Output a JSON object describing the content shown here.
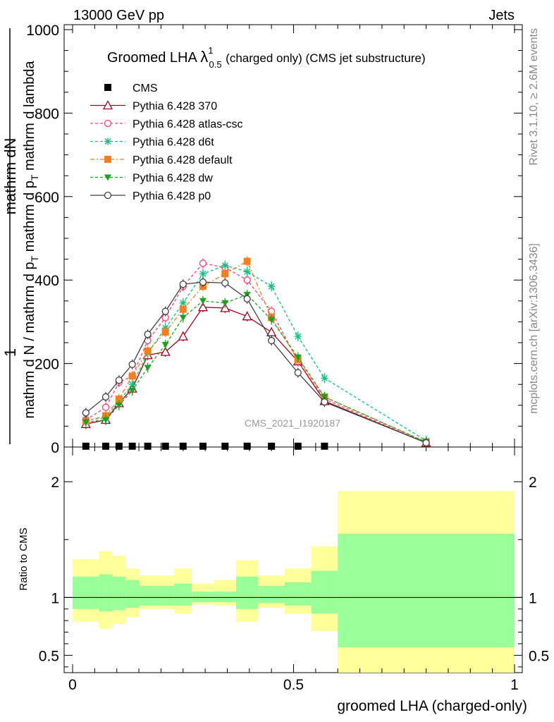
{
  "header": {
    "left": "13000 GeV pp",
    "right": "Jets"
  },
  "side_labels": {
    "rivet": "Rivet 3.1.10, ≥ 2.6M events",
    "mcplots": "mcplots.cern.ch [arXiv:1306.3436]"
  },
  "watermark": "CMS_2021_I1920187",
  "chart_data": [
    {
      "type": "line",
      "title_main": "Groomed LHA",
      "title_symbol": "λ",
      "title_sup": "1",
      "title_sub": "0.5",
      "title_rest": "(charged only) (CMS jet substructure)",
      "ylabel_num": "mathrm dN",
      "ylabel_num_frac_num": "1",
      "ylabel_den": "mathrm d N / mathrm d p",
      "ylabel_den_sub": "T",
      "ylabel_den_rest": "mathrm d p",
      "ylabel_den_rest_sub": "T",
      "ylabel_den_tail": "mathrm d lambda",
      "xlim": [
        0,
        1
      ],
      "ylim": [
        0,
        1000
      ],
      "y_ticks": [
        0,
        200,
        400,
        600,
        800,
        1000
      ],
      "x_ticks": [
        0,
        0.5,
        1
      ],
      "legend_position": "top-left",
      "cms": {
        "name": "CMS",
        "color": "#000000",
        "x": [
          0.03,
          0.075,
          0.105,
          0.135,
          0.17,
          0.21,
          0.25,
          0.295,
          0.345,
          0.395,
          0.45,
          0.51,
          0.57
        ],
        "y": [
          2,
          2,
          2,
          2,
          2,
          2,
          2,
          2,
          2,
          2,
          2,
          2,
          2
        ]
      },
      "series": [
        {
          "name": "Pythia 6.428 370",
          "color": "#a00020",
          "dash": "",
          "marker": "triangle-open",
          "x": [
            0.03,
            0.075,
            0.105,
            0.135,
            0.17,
            0.21,
            0.25,
            0.295,
            0.345,
            0.395,
            0.45,
            0.51,
            0.57,
            0.8
          ],
          "y": [
            55,
            65,
            105,
            140,
            220,
            228,
            265,
            335,
            333,
            313,
            275,
            205,
            110,
            10
          ]
        },
        {
          "name": "Pythia 6.428 atlas-csc",
          "color": "#ff4070",
          "dash": "4,3",
          "marker": "circle-open",
          "x": [
            0.03,
            0.075,
            0.105,
            0.135,
            0.17,
            0.21,
            0.25,
            0.295,
            0.345,
            0.395,
            0.45,
            0.51,
            0.57,
            0.8
          ],
          "y": [
            65,
            95,
            155,
            170,
            255,
            310,
            385,
            440,
            430,
            400,
            325,
            205,
            115,
            10
          ]
        },
        {
          "name": "Pythia 6.428 d6t",
          "color": "#10c080",
          "dash": "4,3",
          "marker": "star",
          "x": [
            0.03,
            0.075,
            0.105,
            0.135,
            0.17,
            0.21,
            0.25,
            0.295,
            0.345,
            0.395,
            0.45,
            0.51,
            0.57,
            0.8
          ],
          "y": [
            65,
            70,
            110,
            150,
            225,
            285,
            345,
            415,
            435,
            420,
            385,
            265,
            165,
            15
          ]
        },
        {
          "name": "Pythia 6.428 default",
          "color": "#f08020",
          "dash": "6,3,2,3",
          "marker": "square",
          "x": [
            0.03,
            0.075,
            0.105,
            0.135,
            0.17,
            0.21,
            0.25,
            0.295,
            0.345,
            0.395,
            0.45,
            0.51,
            0.57,
            0.8
          ],
          "y": [
            62,
            75,
            115,
            170,
            230,
            275,
            330,
            385,
            415,
            445,
            310,
            210,
            120,
            12
          ]
        },
        {
          "name": "Pythia 6.428 dw",
          "color": "#20a020",
          "dash": "4,3",
          "marker": "triangle-down",
          "x": [
            0.03,
            0.075,
            0.105,
            0.135,
            0.17,
            0.21,
            0.25,
            0.295,
            0.345,
            0.395,
            0.45,
            0.51,
            0.57,
            0.8
          ],
          "y": [
            60,
            65,
            100,
            135,
            190,
            245,
            310,
            350,
            345,
            365,
            305,
            215,
            120,
            12
          ]
        },
        {
          "name": "Pythia 6.428 p0",
          "color": "#404040",
          "dash": "",
          "marker": "circle-open",
          "x": [
            0.03,
            0.075,
            0.105,
            0.135,
            0.17,
            0.21,
            0.25,
            0.295,
            0.345,
            0.395,
            0.45,
            0.51,
            0.57,
            0.8
          ],
          "y": [
            82,
            120,
            160,
            198,
            270,
            325,
            390,
            395,
            393,
            355,
            255,
            178,
            108,
            10
          ]
        }
      ]
    },
    {
      "type": "area",
      "ylabel": "Ratio to CMS",
      "xlabel": "groomed LHA (charged-only)",
      "xlim": [
        0,
        1
      ],
      "ylim": [
        0.35,
        2.3
      ],
      "y_ticks": [
        0.5,
        1,
        2
      ],
      "x_ticks": [
        0,
        0.5,
        1
      ],
      "x_tick_labels": [
        "0",
        "0.5",
        "1"
      ],
      "band_colors": {
        "stat": "#99ff99",
        "total": "#ffff99",
        "ref_line": "#000000"
      },
      "bins": [
        {
          "x0": 0.0,
          "x1": 0.06,
          "inner_lo": 0.9,
          "inner_hi": 1.18,
          "outer_lo": 0.79,
          "outer_hi": 1.33
        },
        {
          "x0": 0.06,
          "x1": 0.09,
          "inner_lo": 0.88,
          "inner_hi": 1.2,
          "outer_lo": 0.73,
          "outer_hi": 1.4
        },
        {
          "x0": 0.09,
          "x1": 0.12,
          "inner_lo": 0.89,
          "inner_hi": 1.18,
          "outer_lo": 0.77,
          "outer_hi": 1.36
        },
        {
          "x0": 0.12,
          "x1": 0.15,
          "inner_lo": 0.91,
          "inner_hi": 1.15,
          "outer_lo": 0.83,
          "outer_hi": 1.25
        },
        {
          "x0": 0.15,
          "x1": 0.19,
          "inner_lo": 0.93,
          "inner_hi": 1.1,
          "outer_lo": 0.9,
          "outer_hi": 1.19
        },
        {
          "x0": 0.19,
          "x1": 0.23,
          "inner_lo": 0.93,
          "inner_hi": 1.1,
          "outer_lo": 0.9,
          "outer_hi": 1.19
        },
        {
          "x0": 0.23,
          "x1": 0.27,
          "inner_lo": 0.93,
          "inner_hi": 1.12,
          "outer_lo": 0.86,
          "outer_hi": 1.25
        },
        {
          "x0": 0.27,
          "x1": 0.32,
          "inner_lo": 0.96,
          "inner_hi": 1.05,
          "outer_lo": 0.94,
          "outer_hi": 1.12
        },
        {
          "x0": 0.32,
          "x1": 0.37,
          "inner_lo": 0.96,
          "inner_hi": 1.05,
          "outer_lo": 0.93,
          "outer_hi": 1.15
        },
        {
          "x0": 0.37,
          "x1": 0.42,
          "inner_lo": 0.9,
          "inner_hi": 1.18,
          "outer_lo": 0.79,
          "outer_hi": 1.32
        },
        {
          "x0": 0.42,
          "x1": 0.48,
          "inner_lo": 0.95,
          "inner_hi": 1.1,
          "outer_lo": 0.91,
          "outer_hi": 1.19
        },
        {
          "x0": 0.48,
          "x1": 0.54,
          "inner_lo": 0.93,
          "inner_hi": 1.13,
          "outer_lo": 0.86,
          "outer_hi": 1.25
        },
        {
          "x0": 0.54,
          "x1": 0.6,
          "inner_lo": 0.86,
          "inner_hi": 1.23,
          "outer_lo": 0.71,
          "outer_hi": 1.44
        },
        {
          "x0": 0.6,
          "x1": 1.0,
          "inner_lo": 0.57,
          "inner_hi": 1.55,
          "outer_lo": 0.35,
          "outer_hi": 1.92
        }
      ]
    }
  ]
}
